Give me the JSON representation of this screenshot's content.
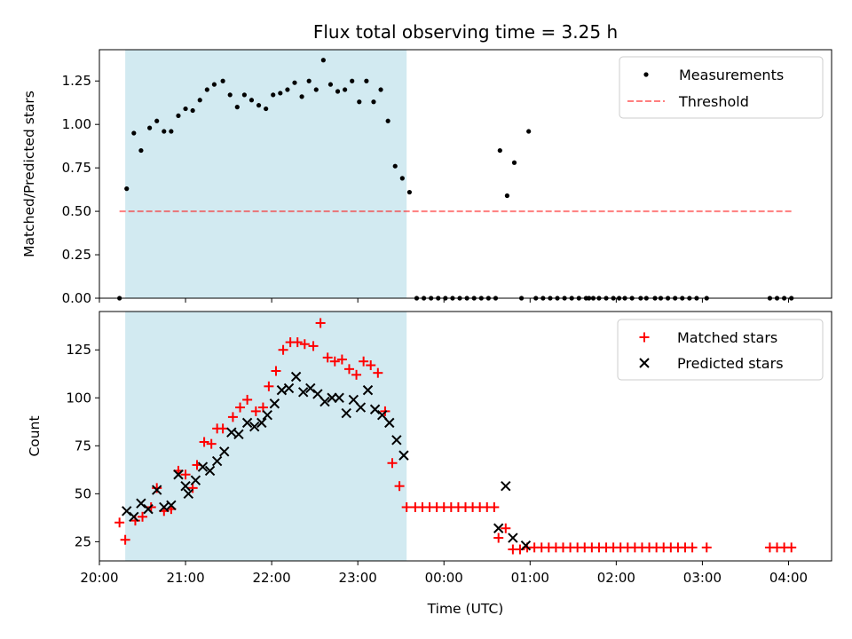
{
  "chart_data": [
    {
      "type": "scatter",
      "title": "Flux total observing time = 3.25 h",
      "xlabel": "",
      "ylabel": "Matched/Predicted stars",
      "xlim": [
        "20:00",
        "04:30"
      ],
      "ylim": [
        0,
        1.43
      ],
      "shaded_interval": [
        "20:18",
        "23:34"
      ],
      "shade_color": "#add8e6",
      "yticks": [
        "0.00",
        "0.25",
        "0.50",
        "0.75",
        "1.00",
        "1.25"
      ],
      "legend": {
        "placement": "top-right",
        "entries": [
          "Measurements",
          "Threshold"
        ]
      },
      "threshold": {
        "value": 0.5,
        "from": "20:14",
        "to": "04:03",
        "color": "#ff0000"
      },
      "series": [
        {
          "name": "Measurements",
          "marker": "dot",
          "color": "#000000",
          "points": [
            [
              "20:14",
              0.0
            ],
            [
              "20:19",
              0.63
            ],
            [
              "20:24",
              0.95
            ],
            [
              "20:29",
              0.85
            ],
            [
              "20:35",
              0.98
            ],
            [
              "20:40",
              1.02
            ],
            [
              "20:45",
              0.96
            ],
            [
              "20:50",
              0.96
            ],
            [
              "20:55",
              1.05
            ],
            [
              "21:00",
              1.09
            ],
            [
              "21:05",
              1.08
            ],
            [
              "21:10",
              1.14
            ],
            [
              "21:15",
              1.2
            ],
            [
              "21:20",
              1.23
            ],
            [
              "21:26",
              1.25
            ],
            [
              "21:31",
              1.17
            ],
            [
              "21:36",
              1.1
            ],
            [
              "21:41",
              1.17
            ],
            [
              "21:46",
              1.14
            ],
            [
              "21:51",
              1.11
            ],
            [
              "21:56",
              1.09
            ],
            [
              "22:01",
              1.17
            ],
            [
              "22:06",
              1.18
            ],
            [
              "22:11",
              1.2
            ],
            [
              "22:16",
              1.24
            ],
            [
              "22:21",
              1.16
            ],
            [
              "22:26",
              1.25
            ],
            [
              "22:31",
              1.2
            ],
            [
              "22:36",
              1.37
            ],
            [
              "22:41",
              1.23
            ],
            [
              "22:46",
              1.19
            ],
            [
              "22:51",
              1.2
            ],
            [
              "22:56",
              1.25
            ],
            [
              "23:01",
              1.13
            ],
            [
              "23:06",
              1.25
            ],
            [
              "23:11",
              1.13
            ],
            [
              "23:16",
              1.2
            ],
            [
              "23:21",
              1.02
            ],
            [
              "23:26",
              0.76
            ],
            [
              "23:31",
              0.69
            ],
            [
              "23:36",
              0.61
            ],
            [
              "23:41",
              0.0
            ],
            [
              "23:46",
              0.0
            ],
            [
              "23:51",
              0.0
            ],
            [
              "23:56",
              0.0
            ],
            [
              "00:01",
              0.0
            ],
            [
              "00:06",
              0.0
            ],
            [
              "00:11",
              0.0
            ],
            [
              "00:16",
              0.0
            ],
            [
              "00:21",
              0.0
            ],
            [
              "00:26",
              0.0
            ],
            [
              "00:31",
              0.0
            ],
            [
              "00:36",
              0.0
            ],
            [
              "00:39",
              0.85
            ],
            [
              "00:44",
              0.59
            ],
            [
              "00:49",
              0.78
            ],
            [
              "00:54",
              0.0
            ],
            [
              "00:59",
              0.96
            ],
            [
              "01:04",
              0.0
            ],
            [
              "01:09",
              0.0
            ],
            [
              "01:14",
              0.0
            ],
            [
              "01:19",
              0.0
            ],
            [
              "01:24",
              0.0
            ],
            [
              "01:29",
              0.0
            ],
            [
              "01:34",
              0.0
            ],
            [
              "01:39",
              0.0
            ],
            [
              "01:41",
              0.0
            ],
            [
              "01:44",
              0.0
            ],
            [
              "01:48",
              0.0
            ],
            [
              "01:53",
              0.0
            ],
            [
              "01:58",
              0.0
            ],
            [
              "02:02",
              0.0
            ],
            [
              "02:06",
              0.0
            ],
            [
              "02:11",
              0.0
            ],
            [
              "02:17",
              0.0
            ],
            [
              "02:21",
              0.0
            ],
            [
              "02:27",
              0.0
            ],
            [
              "02:31",
              0.0
            ],
            [
              "02:36",
              0.0
            ],
            [
              "02:41",
              0.0
            ],
            [
              "02:46",
              0.0
            ],
            [
              "02:51",
              0.0
            ],
            [
              "02:56",
              0.0
            ],
            [
              "03:03",
              0.0
            ],
            [
              "03:47",
              0.0
            ],
            [
              "03:52",
              0.0
            ],
            [
              "03:57",
              0.0
            ],
            [
              "04:02",
              0.0
            ]
          ]
        },
        {
          "name": "Threshold",
          "style": "dashed-line",
          "color": "#ff0000",
          "values": [
            0.5
          ]
        }
      ]
    },
    {
      "type": "scatter",
      "title": "",
      "xlabel": "Time (UTC)",
      "ylabel": "Count",
      "xlim": [
        "20:00",
        "04:30"
      ],
      "ylim": [
        15,
        145
      ],
      "shaded_interval": [
        "20:18",
        "23:34"
      ],
      "shade_color": "#add8e6",
      "xticks": [
        "20:00",
        "21:00",
        "22:00",
        "23:00",
        "00:00",
        "01:00",
        "02:00",
        "03:00",
        "04:00"
      ],
      "yticks": [
        "25",
        "50",
        "75",
        "100",
        "125"
      ],
      "legend": {
        "placement": "top-right",
        "entries": [
          "Matched stars",
          "Predicted stars"
        ]
      },
      "series": [
        {
          "name": "Matched stars",
          "marker": "plus",
          "color": "#ff0000",
          "points": [
            [
              "20:14",
              35
            ],
            [
              "20:18",
              26
            ],
            [
              "20:25",
              36
            ],
            [
              "20:30",
              38
            ],
            [
              "20:36",
              43
            ],
            [
              "20:40",
              53
            ],
            [
              "20:45",
              41
            ],
            [
              "20:50",
              42
            ],
            [
              "20:55",
              62
            ],
            [
              "21:00",
              60
            ],
            [
              "21:05",
              53
            ],
            [
              "21:08",
              65
            ],
            [
              "21:13",
              77
            ],
            [
              "21:18",
              76
            ],
            [
              "21:22",
              84
            ],
            [
              "21:26",
              84
            ],
            [
              "21:33",
              90
            ],
            [
              "21:38",
              95
            ],
            [
              "21:43",
              99
            ],
            [
              "21:49",
              93
            ],
            [
              "21:54",
              95
            ],
            [
              "21:58",
              106
            ],
            [
              "22:03",
              114
            ],
            [
              "22:08",
              125
            ],
            [
              "22:13",
              129
            ],
            [
              "22:18",
              129
            ],
            [
              "22:23",
              128
            ],
            [
              "22:29",
              127
            ],
            [
              "22:34",
              139
            ],
            [
              "22:39",
              121
            ],
            [
              "22:44",
              119
            ],
            [
              "22:49",
              120
            ],
            [
              "22:54",
              115
            ],
            [
              "22:59",
              112
            ],
            [
              "23:04",
              119
            ],
            [
              "23:09",
              117
            ],
            [
              "23:14",
              113
            ],
            [
              "23:19",
              93
            ],
            [
              "23:24",
              66
            ],
            [
              "23:29",
              54
            ],
            [
              "23:34",
              43
            ],
            [
              "23:40",
              43
            ],
            [
              "23:45",
              43
            ],
            [
              "23:50",
              43
            ],
            [
              "23:55",
              43
            ],
            [
              "00:00",
              43
            ],
            [
              "00:05",
              43
            ],
            [
              "00:10",
              43
            ],
            [
              "00:15",
              43
            ],
            [
              "00:20",
              43
            ],
            [
              "00:25",
              43
            ],
            [
              "00:30",
              43
            ],
            [
              "00:35",
              43
            ],
            [
              "00:38",
              27
            ],
            [
              "00:43",
              32
            ],
            [
              "00:48",
              21
            ],
            [
              "00:53",
              21
            ],
            [
              "00:58",
              22
            ],
            [
              "01:03",
              22
            ],
            [
              "01:08",
              22
            ],
            [
              "01:13",
              22
            ],
            [
              "01:18",
              22
            ],
            [
              "01:23",
              22
            ],
            [
              "01:28",
              22
            ],
            [
              "01:33",
              22
            ],
            [
              "01:38",
              22
            ],
            [
              "01:43",
              22
            ],
            [
              "01:48",
              22
            ],
            [
              "01:53",
              22
            ],
            [
              "01:58",
              22
            ],
            [
              "02:03",
              22
            ],
            [
              "02:08",
              22
            ],
            [
              "02:13",
              22
            ],
            [
              "02:18",
              22
            ],
            [
              "02:23",
              22
            ],
            [
              "02:28",
              22
            ],
            [
              "02:33",
              22
            ],
            [
              "02:38",
              22
            ],
            [
              "02:43",
              22
            ],
            [
              "02:48",
              22
            ],
            [
              "02:53",
              22
            ],
            [
              "03:03",
              22
            ],
            [
              "03:47",
              22
            ],
            [
              "03:52",
              22
            ],
            [
              "03:57",
              22
            ],
            [
              "04:02",
              22
            ]
          ]
        },
        {
          "name": "Predicted stars",
          "marker": "x",
          "color": "#000000",
          "points": [
            [
              "20:19",
              41
            ],
            [
              "20:24",
              38
            ],
            [
              "20:29",
              45
            ],
            [
              "20:34",
              42
            ],
            [
              "20:40",
              52
            ],
            [
              "20:45",
              43
            ],
            [
              "20:50",
              44
            ],
            [
              "20:55",
              60
            ],
            [
              "21:00",
              54
            ],
            [
              "21:02",
              50
            ],
            [
              "21:07",
              57
            ],
            [
              "21:12",
              64
            ],
            [
              "21:17",
              62
            ],
            [
              "21:22",
              67
            ],
            [
              "21:27",
              72
            ],
            [
              "21:32",
              82
            ],
            [
              "21:37",
              81
            ],
            [
              "21:43",
              87
            ],
            [
              "21:48",
              85
            ],
            [
              "21:53",
              87
            ],
            [
              "21:57",
              91
            ],
            [
              "22:02",
              97
            ],
            [
              "22:07",
              104
            ],
            [
              "22:12",
              105
            ],
            [
              "22:17",
              111
            ],
            [
              "22:22",
              103
            ],
            [
              "22:27",
              105
            ],
            [
              "22:32",
              102
            ],
            [
              "22:37",
              98
            ],
            [
              "22:42",
              100
            ],
            [
              "22:47",
              100
            ],
            [
              "22:52",
              92
            ],
            [
              "22:57",
              99
            ],
            [
              "23:02",
              95
            ],
            [
              "23:07",
              104
            ],
            [
              "23:12",
              94
            ],
            [
              "23:17",
              91
            ],
            [
              "23:22",
              87
            ],
            [
              "23:27",
              78
            ],
            [
              "23:32",
              70
            ],
            [
              "00:38",
              32
            ],
            [
              "00:43",
              54
            ],
            [
              "00:48",
              27
            ],
            [
              "00:57",
              23
            ]
          ]
        }
      ]
    }
  ]
}
